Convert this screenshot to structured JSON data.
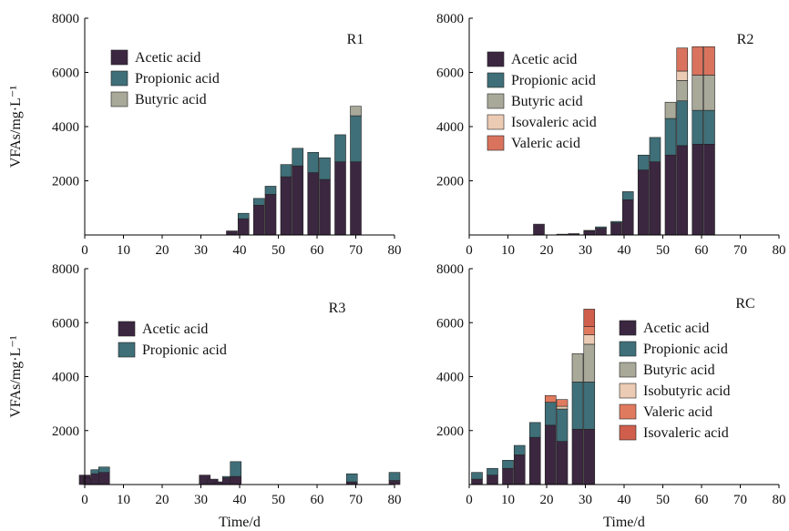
{
  "chart_data": [
    {
      "type": "bar",
      "stacked": true,
      "panel_label": "R1",
      "xlabel": "",
      "ylabel": "VFAs/mg·L⁻¹",
      "xlim": [
        0,
        80
      ],
      "ylim": [
        0,
        8000
      ],
      "xticks": [
        0,
        10,
        20,
        30,
        40,
        50,
        60,
        70,
        80
      ],
      "yticks": [
        2000,
        4000,
        6000,
        8000
      ],
      "legend_position": "top-left",
      "x": [
        38,
        41,
        45,
        48,
        52,
        55,
        59,
        62,
        66,
        70
      ],
      "series": [
        {
          "name": "Acetic acid",
          "color": "#3b2740",
          "values": [
            150,
            600,
            1100,
            1500,
            2150,
            2550,
            2300,
            2050,
            2700,
            2700
          ]
        },
        {
          "name": "Propionic acid",
          "color": "#3f6f78",
          "values": [
            0,
            200,
            250,
            300,
            450,
            650,
            750,
            800,
            1000,
            1700
          ]
        },
        {
          "name": "Butyric acid",
          "color": "#a9a99a",
          "values": [
            0,
            0,
            0,
            0,
            0,
            0,
            0,
            0,
            0,
            350
          ]
        }
      ]
    },
    {
      "type": "bar",
      "stacked": true,
      "panel_label": "R2",
      "xlabel": "",
      "ylabel": "",
      "xlim": [
        0,
        80
      ],
      "ylim": [
        0,
        8000
      ],
      "xticks": [
        0,
        10,
        20,
        30,
        40,
        50,
        60,
        70,
        80
      ],
      "yticks": [
        2000,
        4000,
        6000,
        8000
      ],
      "legend_position": "top-left",
      "x": [
        18,
        24,
        27,
        31,
        34,
        38,
        41,
        45,
        48,
        52,
        55,
        59,
        62
      ],
      "series": [
        {
          "name": "Acetic acid",
          "color": "#3b2740",
          "values": [
            400,
            30,
            50,
            150,
            250,
            450,
            1300,
            2400,
            2700,
            2950,
            3300,
            3350,
            3350
          ]
        },
        {
          "name": "Propionic acid",
          "color": "#3f6f78",
          "values": [
            0,
            0,
            0,
            20,
            50,
            50,
            300,
            550,
            900,
            1350,
            1650,
            1250,
            1250
          ]
        },
        {
          "name": "Butyric acid",
          "color": "#a9a99a",
          "values": [
            0,
            0,
            0,
            0,
            0,
            0,
            0,
            0,
            0,
            600,
            750,
            1300,
            1300
          ]
        },
        {
          "name": "Isovaleric acid",
          "color": "#ebcbb3",
          "values": [
            0,
            0,
            0,
            0,
            0,
            0,
            0,
            0,
            0,
            0,
            350,
            0,
            0
          ]
        },
        {
          "name": "Valeric acid",
          "color": "#d9735e",
          "values": [
            0,
            0,
            0,
            0,
            0,
            0,
            0,
            0,
            0,
            0,
            850,
            1050,
            1050
          ]
        }
      ]
    },
    {
      "type": "bar",
      "stacked": true,
      "panel_label": "R3",
      "xlabel": "Time/d",
      "ylabel": "VFAs/mg·L⁻¹",
      "xlim": [
        0,
        80
      ],
      "ylim": [
        0,
        8000
      ],
      "xticks": [
        0,
        10,
        20,
        30,
        40,
        50,
        60,
        70,
        80
      ],
      "yticks": [
        2000,
        4000,
        6000,
        8000
      ],
      "legend_position": "top-left",
      "x": [
        0,
        1,
        3,
        5,
        31,
        33,
        35,
        37,
        39,
        69,
        80
      ],
      "series": [
        {
          "name": "Acetic acid",
          "color": "#3b2740",
          "values": [
            350,
            250,
            400,
            450,
            350,
            200,
            100,
            250,
            300,
            100,
            150
          ]
        },
        {
          "name": "Propionic acid",
          "color": "#3f6f78",
          "values": [
            0,
            0,
            150,
            200,
            0,
            0,
            0,
            50,
            550,
            300,
            300
          ]
        }
      ]
    },
    {
      "type": "bar",
      "stacked": true,
      "panel_label": "RC",
      "xlabel": "Time/d",
      "ylabel": "",
      "xlim": [
        0,
        80
      ],
      "ylim": [
        0,
        8000
      ],
      "xticks": [
        0,
        10,
        20,
        30,
        40,
        50,
        60,
        70,
        80
      ],
      "yticks": [
        2000,
        4000,
        6000,
        8000
      ],
      "legend_position": "right",
      "x": [
        2,
        6,
        10,
        13,
        17,
        21,
        24,
        28,
        31
      ],
      "series": [
        {
          "name": "Acetic acid",
          "color": "#3b2740",
          "values": [
            200,
            350,
            600,
            1100,
            1750,
            2200,
            1600,
            2050,
            2050
          ]
        },
        {
          "name": "Propionic acid",
          "color": "#3f6f78",
          "values": [
            250,
            250,
            300,
            350,
            550,
            850,
            1200,
            1750,
            1750
          ]
        },
        {
          "name": "Butyric acid",
          "color": "#a9a99a",
          "values": [
            0,
            0,
            0,
            0,
            0,
            0,
            0,
            1050,
            1400
          ]
        },
        {
          "name": "Isobutyric acid",
          "color": "#ebcbb3",
          "values": [
            0,
            0,
            0,
            0,
            0,
            0,
            100,
            0,
            350
          ]
        },
        {
          "name": "Valeric acid",
          "color": "#e07a5f",
          "values": [
            0,
            0,
            0,
            0,
            0,
            250,
            250,
            0,
            300
          ]
        },
        {
          "name": "Isovaleric acid",
          "color": "#cf5f4c",
          "values": [
            0,
            0,
            0,
            0,
            0,
            0,
            0,
            0,
            650
          ]
        }
      ]
    }
  ]
}
